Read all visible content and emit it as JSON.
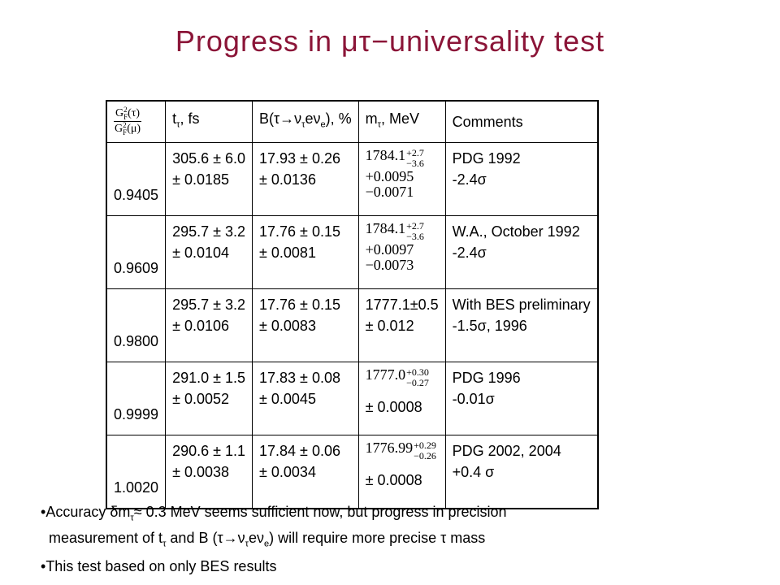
{
  "title": "Progress in μτ−universality test",
  "table": {
    "header": {
      "ratio": {
        "symbol": "G",
        "sub": "F",
        "sup": "2",
        "numerator_arg": "(τ)",
        "denominator_arg": "(μ)"
      },
      "lifetime": [
        {
          "t": "t"
        },
        {
          "sub": "τ"
        },
        {
          "t": ", fs"
        }
      ],
      "branching": [
        {
          "t": "B(τ→ν"
        },
        {
          "sub": "τ"
        },
        {
          "t": "eν"
        },
        {
          "sub": "e"
        },
        {
          "t": "), %"
        }
      ],
      "mass": [
        {
          "t": "m"
        },
        {
          "sub": "τ"
        },
        {
          "t": ", MeV"
        }
      ],
      "comments": "Comments"
    },
    "rows": [
      {
        "ratio": "0.9405",
        "lifetime": [
          "305.6 ± 6.0",
          "± 0.0185"
        ],
        "branching": [
          "17.93 ± 0.26",
          "± 0.0136"
        ],
        "mass": {
          "central": "1784.1",
          "upper": "+2.7",
          "lower": "−3.6",
          "extra": [
            "+0.0095",
            "−0.0071"
          ]
        },
        "comments": [
          "PDG 1992",
          "-2.4σ"
        ]
      },
      {
        "ratio": "0.9609",
        "lifetime": [
          "295.7 ± 3.2",
          "± 0.0104"
        ],
        "branching": [
          "17.76 ± 0.15",
          "± 0.0081"
        ],
        "mass": {
          "central": "1784.1",
          "upper": "+2.7",
          "lower": "−3.6",
          "extra": [
            "+0.0097",
            "−0.0073"
          ]
        },
        "comments": [
          "W.A., October 1992",
          "-2.4σ"
        ]
      },
      {
        "ratio": "0.9800",
        "lifetime": [
          "295.7 ± 3.2",
          "± 0.0106"
        ],
        "branching": [
          "17.76 ± 0.15",
          "± 0.0083"
        ],
        "mass": {
          "lines": [
            "1777.1±0.5",
            "± 0.012"
          ]
        },
        "comments": [
          "With BES preliminary",
          "-1.5σ, 1996"
        ]
      },
      {
        "ratio": "0.9999",
        "lifetime": [
          "291.0 ± 1.5",
          "± 0.0052"
        ],
        "branching": [
          "17.83 ± 0.08",
          "± 0.0045"
        ],
        "mass": {
          "central": "1777.0",
          "upper": "+0.30",
          "lower": "−0.27",
          "lines": [
            "± 0.0008"
          ]
        },
        "comments": [
          "PDG 1996",
          "-0.01σ"
        ]
      },
      {
        "ratio": "1.0020",
        "lifetime": [
          "290.6 ± 1.1",
          "± 0.0038"
        ],
        "branching": [
          "17.84 ± 0.06",
          "± 0.0034"
        ],
        "mass": {
          "central": "1776.99",
          "upper": "+0.29",
          "lower": "−0.26",
          "lines": [
            "± 0.0008"
          ]
        },
        "comments": [
          "PDG 2002, 2004",
          "+0.4 σ"
        ]
      }
    ]
  },
  "bullets": [
    [
      [
        {
          "t": "Accuracy δm"
        },
        {
          "sub": "τ"
        },
        {
          "t": "≈ 0.3 MeV seems sufficient now, but progress in precision"
        }
      ],
      [
        {
          "t": "measurement of t"
        },
        {
          "sub": "τ"
        },
        {
          "t": "  and  B (τ→ν"
        },
        {
          "sub": "τ"
        },
        {
          "t": "eν"
        },
        {
          "sub": "e"
        },
        {
          "t": ")  will require more precise τ mass"
        }
      ]
    ],
    [
      [
        {
          "t": "This test based on only BES results"
        }
      ]
    ]
  ]
}
